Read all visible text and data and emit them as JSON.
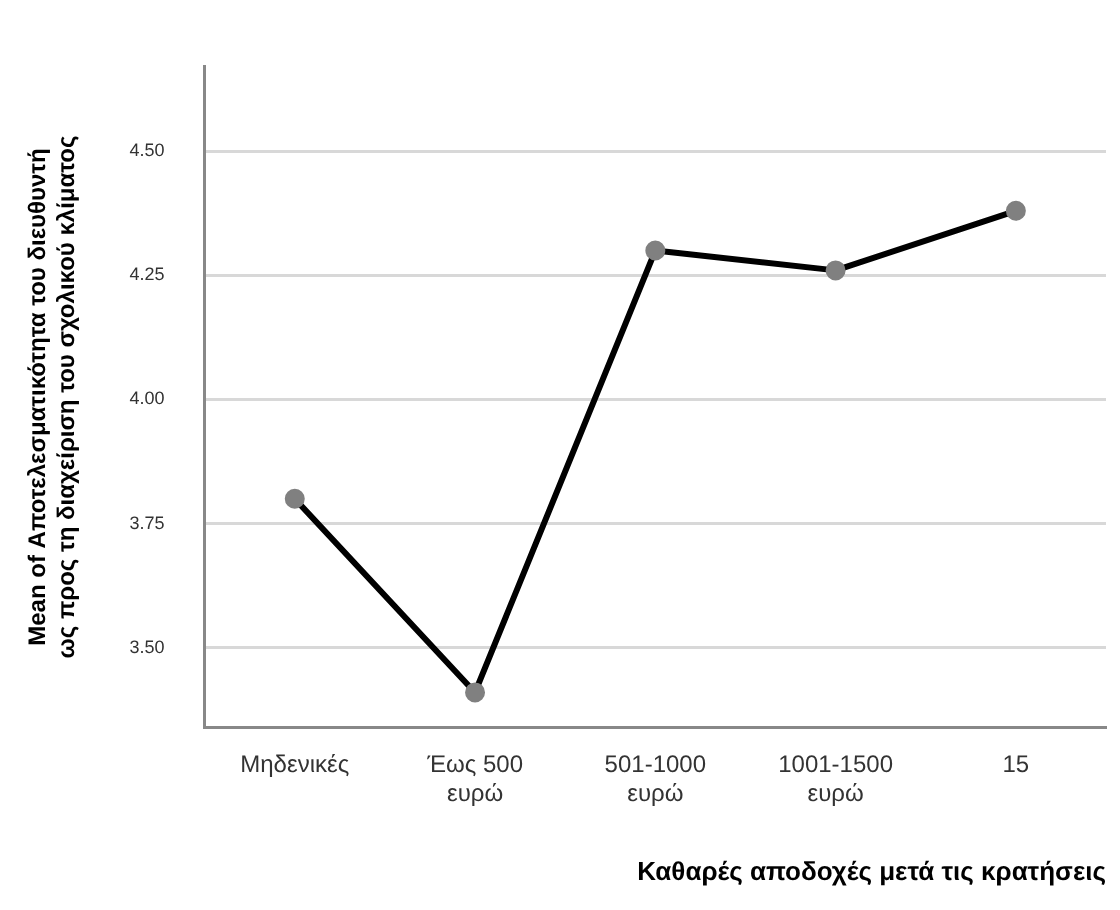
{
  "chart_data": {
    "type": "line",
    "xlabel": "Καθαρές αποδοχές μετά τις κρατήσεις",
    "ylabel": "Mean of Αποτελεσματικότητα του διευθυντή ως προς τη διαχείριση του σχολικού κλίματος",
    "categories": [
      "Μηδενικές",
      "Έως 500 ευρώ",
      "501-1000 ευρώ",
      "1001-1500 ευρώ",
      "15"
    ],
    "series": [
      {
        "color": "#000000",
        "values": [
          3.8,
          3.41,
          4.3,
          4.26,
          4.38
        ]
      }
    ],
    "ylim": [
      3.34,
      4.67
    ],
    "yticks": [
      {
        "value": 3.5,
        "label": "3.50"
      },
      {
        "value": 3.75,
        "label": "3.75"
      },
      {
        "value": 4.0,
        "label": "4.00"
      },
      {
        "value": 4.25,
        "label": "4.25"
      },
      {
        "value": 4.5,
        "label": "4.50"
      }
    ],
    "grid": "y",
    "marker": "circle",
    "line_style": "solid",
    "legend": false
  }
}
